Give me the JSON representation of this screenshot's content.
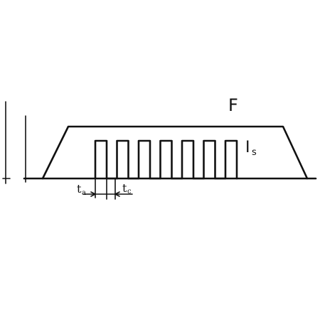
{
  "labels": {
    "force": "F",
    "current_main": "I",
    "current_sub": "s",
    "time_a_main": "t",
    "time_a_sub": "a",
    "time_c_main": "t",
    "time_c_sub": "c"
  },
  "pulses": {
    "count": 7
  },
  "colors": {
    "ink": "#111111",
    "background": "#ffffff"
  }
}
